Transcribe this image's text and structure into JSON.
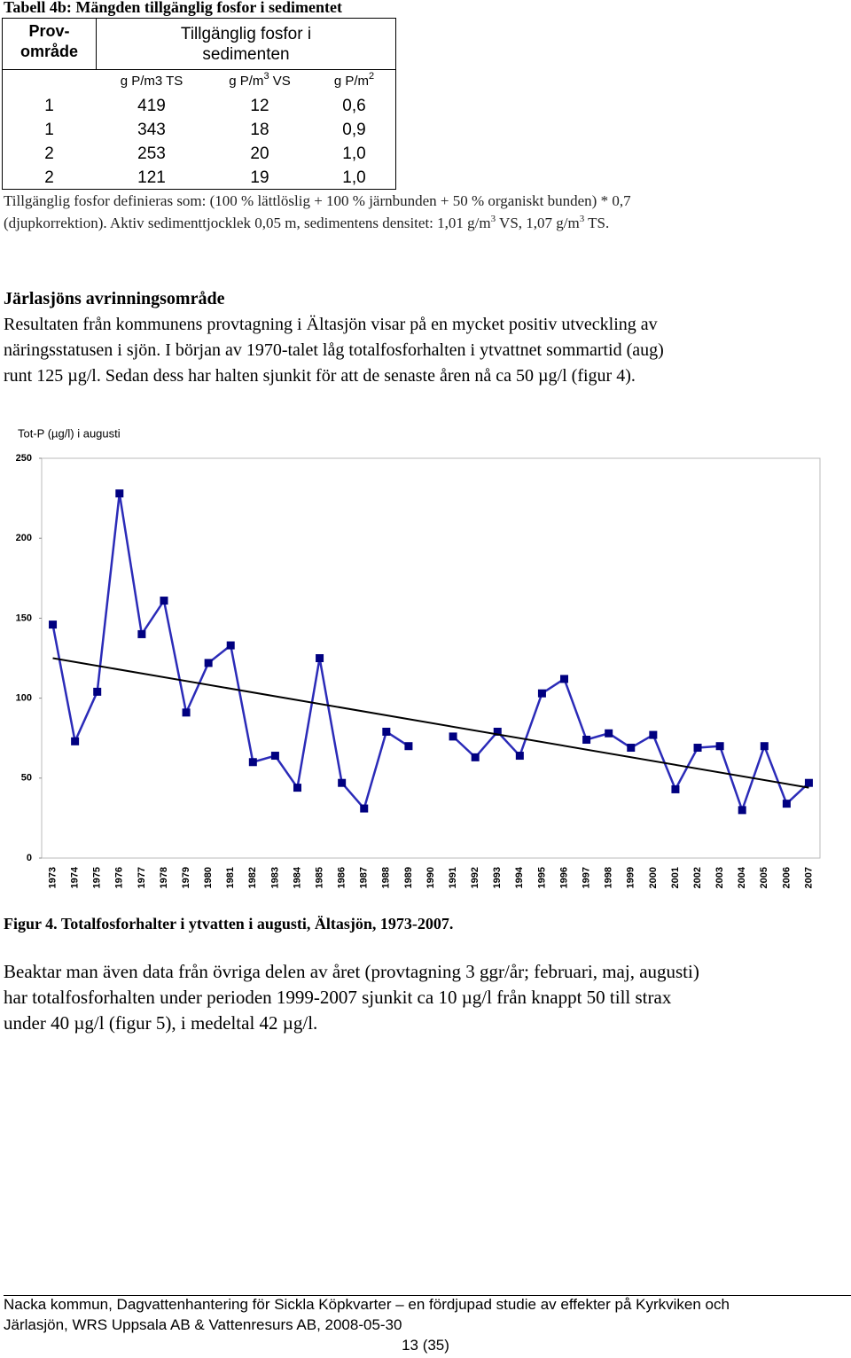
{
  "table": {
    "title": "Tabell 4b: Mängden tillgänglig fosfor i sedimentet",
    "header": {
      "col0": [
        "Prov-",
        "område"
      ],
      "group": [
        "Tillgänglig fosfor i",
        "sedimenten"
      ]
    },
    "units": [
      {
        "base": "g P/m3 TS"
      },
      {
        "base": "g P/m",
        "sup": "3",
        "suffix": " VS"
      },
      {
        "base": "g P/m",
        "sup": "2"
      }
    ],
    "rows": [
      [
        "1",
        "419",
        "12",
        "0,6"
      ],
      [
        "1",
        "343",
        "18",
        "0,9"
      ],
      [
        "2",
        "253",
        "20",
        "1,0"
      ],
      [
        "2",
        "121",
        "19",
        "1,0"
      ]
    ],
    "note": {
      "line1": "Tillgänglig fosfor definieras som: (100 % lättlöslig + 100 % järnbunden + 50 % organiskt bunden) * 0,7",
      "line2": [
        "(djupkorrektion). Aktiv sedimenttjocklek 0,05 m, sedimentens densitet: 1,01 g/m",
        "3",
        " VS, 1,07 g/m",
        "3",
        " TS."
      ]
    }
  },
  "section": {
    "heading": "Järlasjöns avrinningsområde",
    "lines": [
      "Resultaten från kommunens provtagning i Ältasjön visar på en mycket positiv utveckling av",
      "näringsstatusen i sjön. I början av 1970-talet låg totalfosforhalten i ytvattnet sommartid (aug)",
      "runt 125 µg/l. Sedan dess har halten sjunkit för att de senaste åren nå ca 50 µg/l (figur 4)."
    ]
  },
  "chart_data": {
    "type": "line",
    "title": "Tot-P (µg/l) i augusti",
    "categories": [
      "1973",
      "1974",
      "1975",
      "1976",
      "1977",
      "1978",
      "1979",
      "1980",
      "1981",
      "1982",
      "1983",
      "1984",
      "1985",
      "1986",
      "1987",
      "1988",
      "1989",
      "1990",
      "1991",
      "1992",
      "1993",
      "1994",
      "1995",
      "1996",
      "1997",
      "1998",
      "1999",
      "2000",
      "2001",
      "2002",
      "2003",
      "2004",
      "2005",
      "2006",
      "2007"
    ],
    "series": [
      {
        "color": "#2b2bb8",
        "marker_color": "#000080",
        "values": [
          146,
          73,
          104,
          228,
          140,
          161,
          91,
          122,
          133,
          60,
          64,
          44,
          125,
          47,
          31,
          79,
          70,
          null,
          76,
          63,
          79,
          64,
          103,
          112,
          74,
          78,
          69,
          77,
          43,
          69,
          70,
          30,
          70,
          34,
          47
        ]
      }
    ],
    "trendline": {
      "color": "#000000",
      "values": [
        125,
        44
      ]
    },
    "ylim": [
      0,
      250
    ],
    "yticks": [
      0,
      50,
      100,
      150,
      200,
      250
    ],
    "grid": false
  },
  "caption": "Figur 4. Totalfosforhalter i ytvatten i augusti, Ältasjön, 1973-2007.",
  "paragraph": [
    "Beaktar man även data från övriga delen av året (provtagning 3 ggr/år; februari, maj, augusti)",
    "har totalfosforhalten under perioden 1999-2007 sjunkit ca 10 µg/l från knappt 50 till strax",
    "under 40 µg/l (figur 5), i medeltal 42 µg/l."
  ],
  "footer": {
    "lines": [
      "Nacka kommun, Dagvattenhantering för Sickla Köpkvarter – en fördjupad studie av effekter på Kyrkviken och",
      "Järlasjön, WRS Uppsala AB & Vattenresurs AB, 2008-05-30"
    ],
    "page": "13 (35)"
  }
}
